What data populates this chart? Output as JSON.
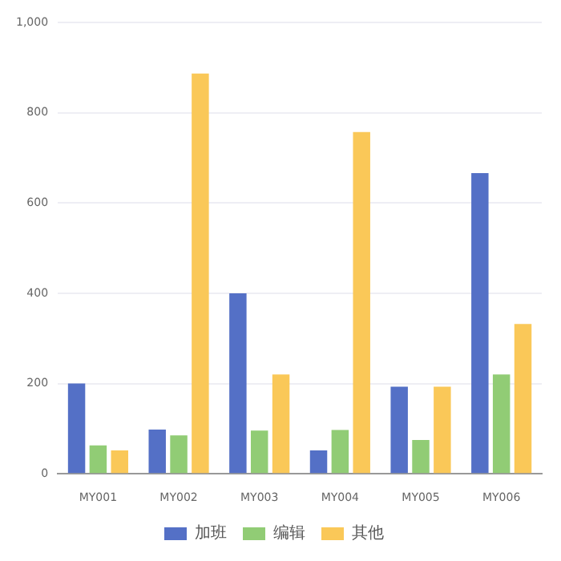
{
  "chart_data": {
    "type": "bar",
    "categories": [
      "MY001",
      "MY002",
      "MY003",
      "MY004",
      "MY005",
      "MY006"
    ],
    "series": [
      {
        "name": "加班",
        "color": "#5470c6",
        "values": [
          200,
          98,
          400,
          52,
          193,
          666
        ]
      },
      {
        "name": "编辑",
        "color": "#91cc75",
        "values": [
          63,
          85,
          96,
          97,
          75,
          220
        ]
      },
      {
        "name": "其他",
        "color": "#fac858",
        "values": [
          52,
          887,
          220,
          757,
          193,
          332
        ]
      }
    ],
    "ylim": [
      0,
      1000
    ],
    "yticks": [
      0,
      200,
      400,
      600,
      800,
      {
        "value": 1000,
        "label": "1,000"
      }
    ],
    "grid": "y",
    "legend": "bottom"
  }
}
